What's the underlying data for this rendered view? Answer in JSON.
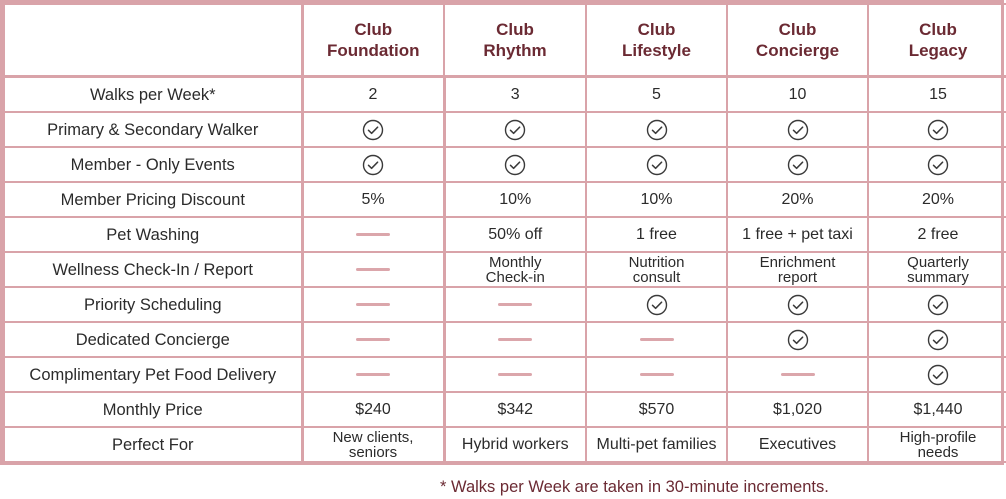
{
  "header": {
    "plans": [
      {
        "line1": "Club",
        "line2": "Foundation"
      },
      {
        "line1": "Club",
        "line2": "Rhythm"
      },
      {
        "line1": "Club",
        "line2": "Lifestyle"
      },
      {
        "line1": "Club",
        "line2": "Concierge"
      },
      {
        "line1": "Club",
        "line2": "Legacy"
      }
    ]
  },
  "rows": [
    {
      "feature": "Walks per Week*",
      "cells": [
        {
          "type": "text",
          "value": "2"
        },
        {
          "type": "text",
          "value": "3"
        },
        {
          "type": "text",
          "value": "5"
        },
        {
          "type": "text",
          "value": "10"
        },
        {
          "type": "text",
          "value": "15"
        }
      ]
    },
    {
      "feature": "Primary & Secondary Walker",
      "cells": [
        {
          "type": "check"
        },
        {
          "type": "check"
        },
        {
          "type": "check"
        },
        {
          "type": "check"
        },
        {
          "type": "check"
        }
      ]
    },
    {
      "feature": "Member - Only Events",
      "cells": [
        {
          "type": "check"
        },
        {
          "type": "check"
        },
        {
          "type": "check"
        },
        {
          "type": "check"
        },
        {
          "type": "check"
        }
      ]
    },
    {
      "feature": "Member Pricing Discount",
      "cells": [
        {
          "type": "text",
          "value": "5%"
        },
        {
          "type": "text",
          "value": "10%"
        },
        {
          "type": "text",
          "value": "10%"
        },
        {
          "type": "text",
          "value": "20%"
        },
        {
          "type": "text",
          "value": "20%"
        }
      ]
    },
    {
      "feature": "Pet Washing",
      "cells": [
        {
          "type": "dash"
        },
        {
          "type": "text",
          "value": "50% off"
        },
        {
          "type": "text",
          "value": "1 free"
        },
        {
          "type": "text",
          "value": "1 free + pet taxi"
        },
        {
          "type": "text",
          "value": "2 free"
        }
      ]
    },
    {
      "feature": "Wellness Check-In / Report",
      "cells": [
        {
          "type": "dash"
        },
        {
          "type": "two",
          "line1": "Monthly",
          "line2": "Check-in"
        },
        {
          "type": "two",
          "line1": "Nutrition",
          "line2": "consult"
        },
        {
          "type": "two",
          "line1": "Enrichment",
          "line2": "report"
        },
        {
          "type": "two",
          "line1": "Quarterly",
          "line2": "summary"
        }
      ]
    },
    {
      "feature": "Priority Scheduling",
      "cells": [
        {
          "type": "dash"
        },
        {
          "type": "dash"
        },
        {
          "type": "check"
        },
        {
          "type": "check"
        },
        {
          "type": "check"
        }
      ]
    },
    {
      "feature": "Dedicated Concierge",
      "cells": [
        {
          "type": "dash"
        },
        {
          "type": "dash"
        },
        {
          "type": "dash"
        },
        {
          "type": "check"
        },
        {
          "type": "check"
        }
      ]
    },
    {
      "feature": "Complimentary Pet Food Delivery",
      "cells": [
        {
          "type": "dash"
        },
        {
          "type": "dash"
        },
        {
          "type": "dash"
        },
        {
          "type": "dash"
        },
        {
          "type": "check"
        }
      ]
    },
    {
      "feature": "Monthly Price",
      "cells": [
        {
          "type": "text",
          "value": "$240"
        },
        {
          "type": "text",
          "value": "$342"
        },
        {
          "type": "text",
          "value": "$570"
        },
        {
          "type": "text",
          "value": "$1,020"
        },
        {
          "type": "text",
          "value": "$1,440"
        }
      ]
    },
    {
      "feature": "Perfect For",
      "cells": [
        {
          "type": "two",
          "line1": "New clients,",
          "line2": "seniors"
        },
        {
          "type": "text",
          "value": "Hybrid workers"
        },
        {
          "type": "text",
          "value": "Multi-pet families"
        },
        {
          "type": "text",
          "value": "Executives"
        },
        {
          "type": "two",
          "line1": "High-profile",
          "line2": "needs"
        }
      ]
    }
  ],
  "footnote": "* Walks per Week are taken in 30-minute increments.",
  "icons": {
    "check": "check-circle-icon",
    "dash": "dash-icon"
  },
  "colors": {
    "accent": "#6b2a33",
    "border": "#d9a3a9",
    "dash": "#dba6ab"
  }
}
